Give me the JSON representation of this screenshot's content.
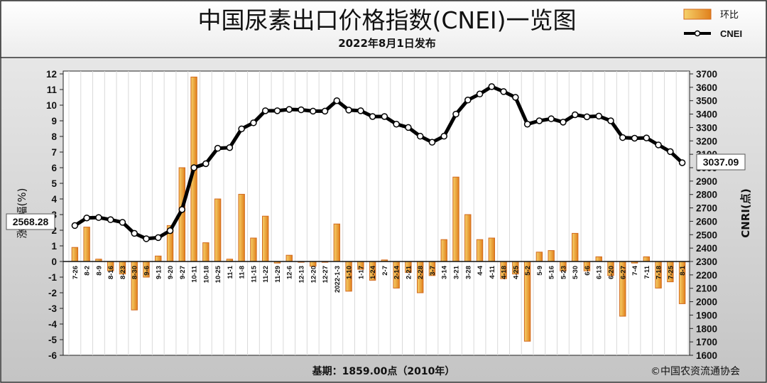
{
  "header": {
    "title": "中国尿素出口价格指数(CNEI)一览图",
    "subtitle": "2022年8月1日发布"
  },
  "footer": {
    "base_note": "基期：1859.00点（2010年）",
    "copyright": "©中国农资流通协会"
  },
  "colors": {
    "bar_fill_start": "#f6d16a",
    "bar_fill_end": "#e0801c",
    "bar_stroke": "#d2691e",
    "line": "#000000",
    "marker_fill": "#ffffff",
    "background_top": "#f2f2f2",
    "background_bottom": "#bdbdbd"
  },
  "chart_data": {
    "type": "bar+line",
    "title": "中国尿素出口价格指数(CNEI)一览图",
    "subtitle": "2022年8月1日发布",
    "ylabel_left": "涨跌幅(%)",
    "ylabel_right": "CNRI(点)",
    "ylim_left": [
      -6,
      12
    ],
    "ylim_right": [
      1600,
      3700
    ],
    "yticks_left": [
      12,
      11,
      10,
      9,
      8,
      7,
      6,
      5,
      4,
      3,
      2,
      1,
      0,
      -1,
      -2,
      -3,
      -4,
      -5,
      -6
    ],
    "yticks_right": [
      3700,
      3600,
      3500,
      3400,
      3300,
      3200,
      3100,
      3000,
      2900,
      2800,
      2700,
      2600,
      2500,
      2400,
      2300,
      2200,
      2100,
      2000,
      1900,
      1800,
      1700,
      1600
    ],
    "grid": true,
    "legend": {
      "position": "top-right",
      "entries": [
        "环比",
        "CNEI"
      ]
    },
    "categories": [
      "7-26",
      "8-2",
      "8-9",
      "8-16",
      "8-23",
      "8-30",
      "9-6",
      "9-13",
      "9-20",
      "9-27",
      "10-11",
      "10-18",
      "10-25",
      "11-1",
      "11-8",
      "11-15",
      "11-22",
      "11-29",
      "12-6",
      "12-13",
      "12-20",
      "12-27",
      "2022-1-3",
      "1-10",
      "1-17",
      "1-24",
      "2-7",
      "2-14",
      "2-21",
      "2-28",
      "3-7",
      "3-14",
      "3-21",
      "3-28",
      "4-4",
      "4-11",
      "4-18",
      "4-25",
      "5-2",
      "5-9",
      "5-16",
      "5-23",
      "5-30",
      "6-6",
      "6-13",
      "6-20",
      "6-27",
      "7-4",
      "7-11",
      "7-18",
      "7-25",
      "8-1"
    ],
    "series": [
      {
        "name": "环比",
        "type": "bar",
        "axis": "left",
        "values": [
          0.9,
          2.2,
          0.15,
          -0.6,
          -0.8,
          -3.1,
          -1.0,
          0.35,
          2.3,
          6.0,
          11.8,
          1.2,
          4.0,
          0.15,
          4.3,
          1.5,
          2.9,
          -0.1,
          0.4,
          -0.05,
          -0.3,
          -0.05,
          2.4,
          -1.9,
          -0.5,
          -1.2,
          0.1,
          -1.7,
          -0.7,
          -2.0,
          -0.9,
          1.4,
          5.4,
          3.0,
          1.4,
          1.5,
          -1.1,
          -0.8,
          -5.1,
          0.6,
          0.7,
          -0.6,
          1.8,
          -0.6,
          0.3,
          -0.9,
          -3.5,
          -0.1,
          0.3,
          -1.7,
          -1.3,
          -2.7
        ]
      },
      {
        "name": "CNEI",
        "type": "line",
        "axis": "right",
        "values": [
          2568.28,
          2625,
          2628,
          2612,
          2592,
          2510,
          2470,
          2478,
          2530,
          2688,
          3000,
          3030,
          3145,
          3150,
          3290,
          3335,
          3425,
          3425,
          3435,
          3432,
          3422,
          3422,
          3500,
          3430,
          3425,
          3382,
          3382,
          3325,
          3300,
          3235,
          3190,
          3235,
          3400,
          3505,
          3550,
          3605,
          3568,
          3525,
          3325,
          3350,
          3365,
          3340,
          3395,
          3380,
          3385,
          3350,
          3225,
          3220,
          3222,
          3170,
          3120,
          3037.09
        ]
      }
    ],
    "annotations": [
      "2568.28",
      "3037.09"
    ]
  }
}
